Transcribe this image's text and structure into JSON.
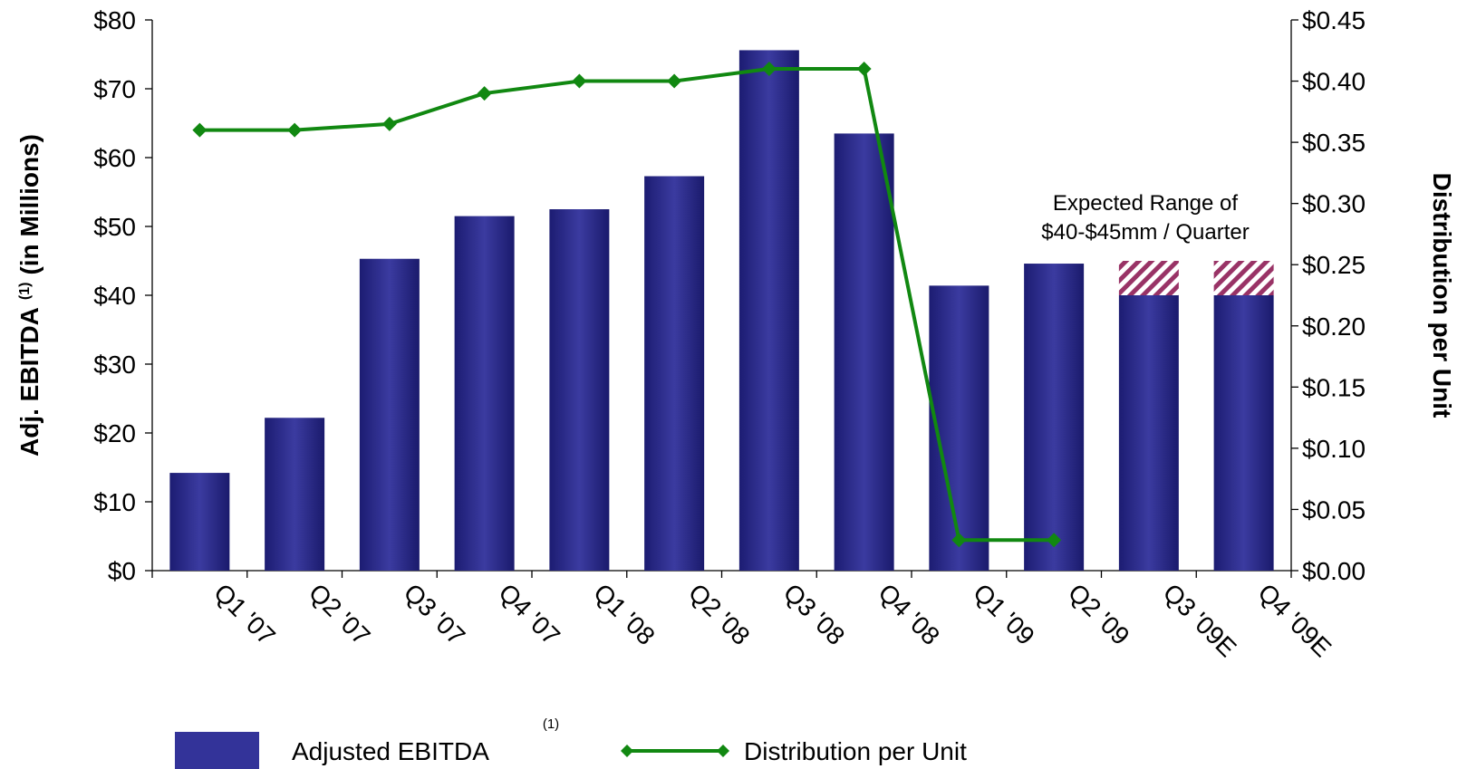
{
  "chart_data": {
    "type": "bar",
    "categories": [
      "Q1 '07",
      "Q2 '07",
      "Q3 '07",
      "Q4 '07",
      "Q1 '08",
      "Q2 '08",
      "Q3 '08",
      "Q4 '08",
      "Q1 '09",
      "Q2 '09",
      "Q3 '09E",
      "Q4 '09E"
    ],
    "series": [
      {
        "name": "Adjusted EBITDA",
        "type": "bar",
        "axis": "left",
        "values": [
          14.2,
          22.2,
          45.3,
          51.5,
          52.5,
          57.3,
          75.6,
          63.5,
          41.4,
          44.6,
          40,
          40
        ],
        "color": "#333399"
      },
      {
        "name": "Expected Range",
        "type": "bar-range",
        "axis": "left",
        "values": [
          null,
          null,
          null,
          null,
          null,
          null,
          null,
          null,
          null,
          null,
          [
            40,
            45
          ],
          [
            40,
            45
          ]
        ],
        "color": "#993366"
      },
      {
        "name": "Distribution per Unit",
        "type": "line",
        "axis": "right",
        "values": [
          0.36,
          0.36,
          0.365,
          0.39,
          0.4,
          0.4,
          0.41,
          0.41,
          0.025,
          0.025,
          null,
          null
        ],
        "color": "#118811"
      }
    ],
    "y_left": {
      "min": 0,
      "max": 80,
      "step": 10,
      "ticks": [
        "$0",
        "$10",
        "$20",
        "$30",
        "$40",
        "$50",
        "$60",
        "$70",
        "$80"
      ]
    },
    "y_right": {
      "min": 0,
      "max": 0.45,
      "step": 0.05,
      "ticks": [
        "$0.00",
        "$0.05",
        "$0.10",
        "$0.15",
        "$0.20",
        "$0.25",
        "$0.30",
        "$0.35",
        "$0.40",
        "$0.45"
      ]
    },
    "ylabel": "Adj. EBITDA",
    "ylabel_sup": "(1)",
    "ylabel_suffix": "(in Millions)",
    "ylabel_right": "Distribution per Unit",
    "annotation": [
      "Expected Range of",
      "$40-$45mm / Quarter"
    ],
    "legend": {
      "bar_label": "Adjusted EBITDA",
      "bar_sup": "(1)",
      "line_label": "Distribution per Unit"
    },
    "grid": false
  }
}
